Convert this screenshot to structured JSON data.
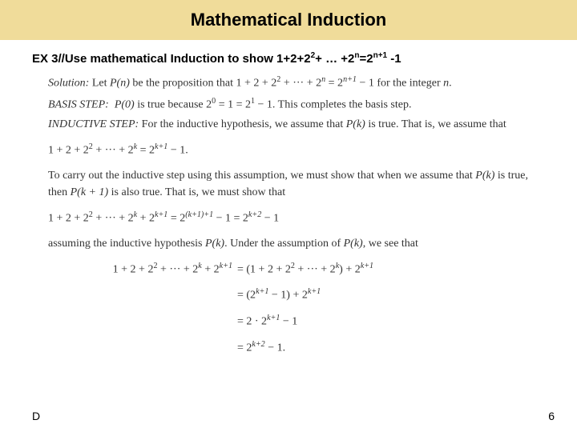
{
  "header": {
    "title": "Mathematical Induction",
    "title_fontsize": 22,
    "title_bg": "#f0dc9a",
    "title_color": "#000000"
  },
  "problem": {
    "label_prefix": "EX 3//Use mathematical Induction to show 1+2+2",
    "label_exp1": "2",
    "label_mid": "+ … +2",
    "label_expn": "n",
    "label_eq": "=2",
    "label_expn1": "n+1",
    "label_suffix": " -1"
  },
  "proof": {
    "solution_label": "Solution:",
    "solution_text_pre": " Let ",
    "pn": "P(n)",
    "solution_text_post": " be the proposition that 1 + 2 + 2",
    "sq": "2",
    "solution_dots": " + ··· + 2",
    "exp_n": "n",
    "solution_eq": " = 2",
    "exp_n1": "n+1",
    "solution_tail": " − 1 for the integer ",
    "n_char": "n",
    "period": ".",
    "basis_label": "BASIS STEP:",
    "basis_body_a": "P(0)",
    "basis_body_b": " is true because 2",
    "basis_exp0": "0",
    "basis_body_c": " = 1 = 2",
    "basis_exp1": "1",
    "basis_body_d": " − 1. This completes the basis step.",
    "ind_label": "INDUCTIVE STEP:",
    "ind_body1": " For the inductive hypothesis, we assume that ",
    "ind_pk": "P(k)",
    "ind_body2": " is true. That is, we assume that",
    "eq1_lhs": "1 + 2 + 2",
    "eq1_dots": " + ··· + 2",
    "eq1_k": "k",
    "eq1_rhs": " = 2",
    "eq1_k1": "k+1",
    "eq1_tail": " − 1.",
    "carry_a": "To carry out the inductive step using this assumption, we must show that when we assume that ",
    "carry_pk": "P(k)",
    "carry_b": " is true, then ",
    "carry_pk1": "P(k + 1)",
    "carry_c": " is also true. That is, we must show that",
    "eq2_lhs": "1 + 2 + 2",
    "eq2_dots": " + ··· + 2",
    "eq2_k": "k",
    "eq2_plus": " + 2",
    "eq2_k1": "k+1",
    "eq2_eq": " = 2",
    "eq2_exp": "(k+1)+1",
    "eq2_mid": " − 1 = 2",
    "eq2_k2": "k+2",
    "eq2_tail": " − 1",
    "assume_a": "assuming the inductive hypothesis ",
    "assume_pk": "P(k)",
    "assume_b": ". Under the assumption of ",
    "assume_pk2": "P(k)",
    "assume_c": ", we see that",
    "al_r1_l_a": "1 + 2 + 2",
    "al_r1_l_b": " + ··· + 2",
    "al_r1_l_k": "k",
    "al_r1_l_c": " + 2",
    "al_r1_l_k1": "k+1",
    "al_r1_r_a": "= (1 + 2 + 2",
    "al_r1_r_b": " + ··· + 2",
    "al_r1_r_k": "k",
    "al_r1_r_c": ") + 2",
    "al_r1_r_k1": "k+1",
    "al_r2_r_a": "= (2",
    "al_r2_r_k1": "k+1",
    "al_r2_r_b": " − 1) + 2",
    "al_r2_r_k1b": "k+1",
    "al_r3_r_a": "= 2 · 2",
    "al_r3_r_k1": "k+1",
    "al_r3_r_b": " − 1",
    "al_r4_r_a": "= 2",
    "al_r4_r_k2": "k+2",
    "al_r4_r_b": " − 1."
  },
  "footer": {
    "left": "D",
    "page": "6"
  },
  "colors": {
    "page_bg": "#ffffff",
    "text": "#333333"
  }
}
